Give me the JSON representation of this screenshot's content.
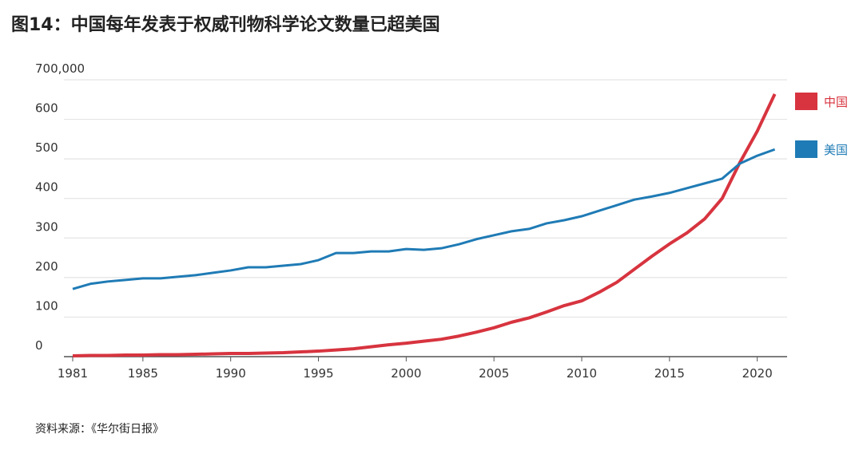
{
  "title": "图14：中国每年发表于权威刊物科学论文数量已超美国",
  "source": "资料来源：《华尔街日报》",
  "chart_data": {
    "type": "line",
    "x": [
      1981,
      1982,
      1983,
      1984,
      1985,
      1986,
      1987,
      1988,
      1989,
      1990,
      1991,
      1992,
      1993,
      1994,
      1995,
      1996,
      1997,
      1998,
      1999,
      2000,
      2001,
      2002,
      2003,
      2004,
      2005,
      2006,
      2007,
      2008,
      2009,
      2010,
      2011,
      2012,
      2013,
      2014,
      2015,
      2016,
      2017,
      2018,
      2019,
      2020,
      2021
    ],
    "series": [
      {
        "name": "中国",
        "color": "#d7343f",
        "values": [
          2,
          3,
          3,
          4,
          4,
          5,
          5,
          6,
          7,
          8,
          8,
          9,
          10,
          12,
          14,
          17,
          20,
          25,
          30,
          34,
          39,
          44,
          52,
          62,
          73,
          87,
          98,
          113,
          129,
          141,
          163,
          188,
          221,
          254,
          285,
          313,
          348,
          400,
          490,
          570,
          664
        ]
      },
      {
        "name": "美国",
        "color": "#1f7bb5",
        "values": [
          171,
          184,
          190,
          194,
          198,
          198,
          202,
          206,
          212,
          218,
          226,
          226,
          230,
          234,
          244,
          262,
          262,
          266,
          266,
          272,
          270,
          274,
          284,
          297,
          307,
          317,
          323,
          337,
          345,
          355,
          369,
          383,
          397,
          405,
          414,
          426,
          438,
          450,
          488,
          508,
          524
        ]
      }
    ],
    "xlim": [
      1980.5,
      2021.7
    ],
    "xticks": [
      1981,
      1985,
      1990,
      1995,
      2000,
      2005,
      2010,
      2015,
      2020
    ],
    "ylim": [
      0,
      700
    ],
    "yticks": [
      0,
      100,
      200,
      300,
      400,
      500,
      600,
      {
        "value": 700,
        "label": "700,000"
      }
    ],
    "grid": true,
    "legend": "right"
  }
}
